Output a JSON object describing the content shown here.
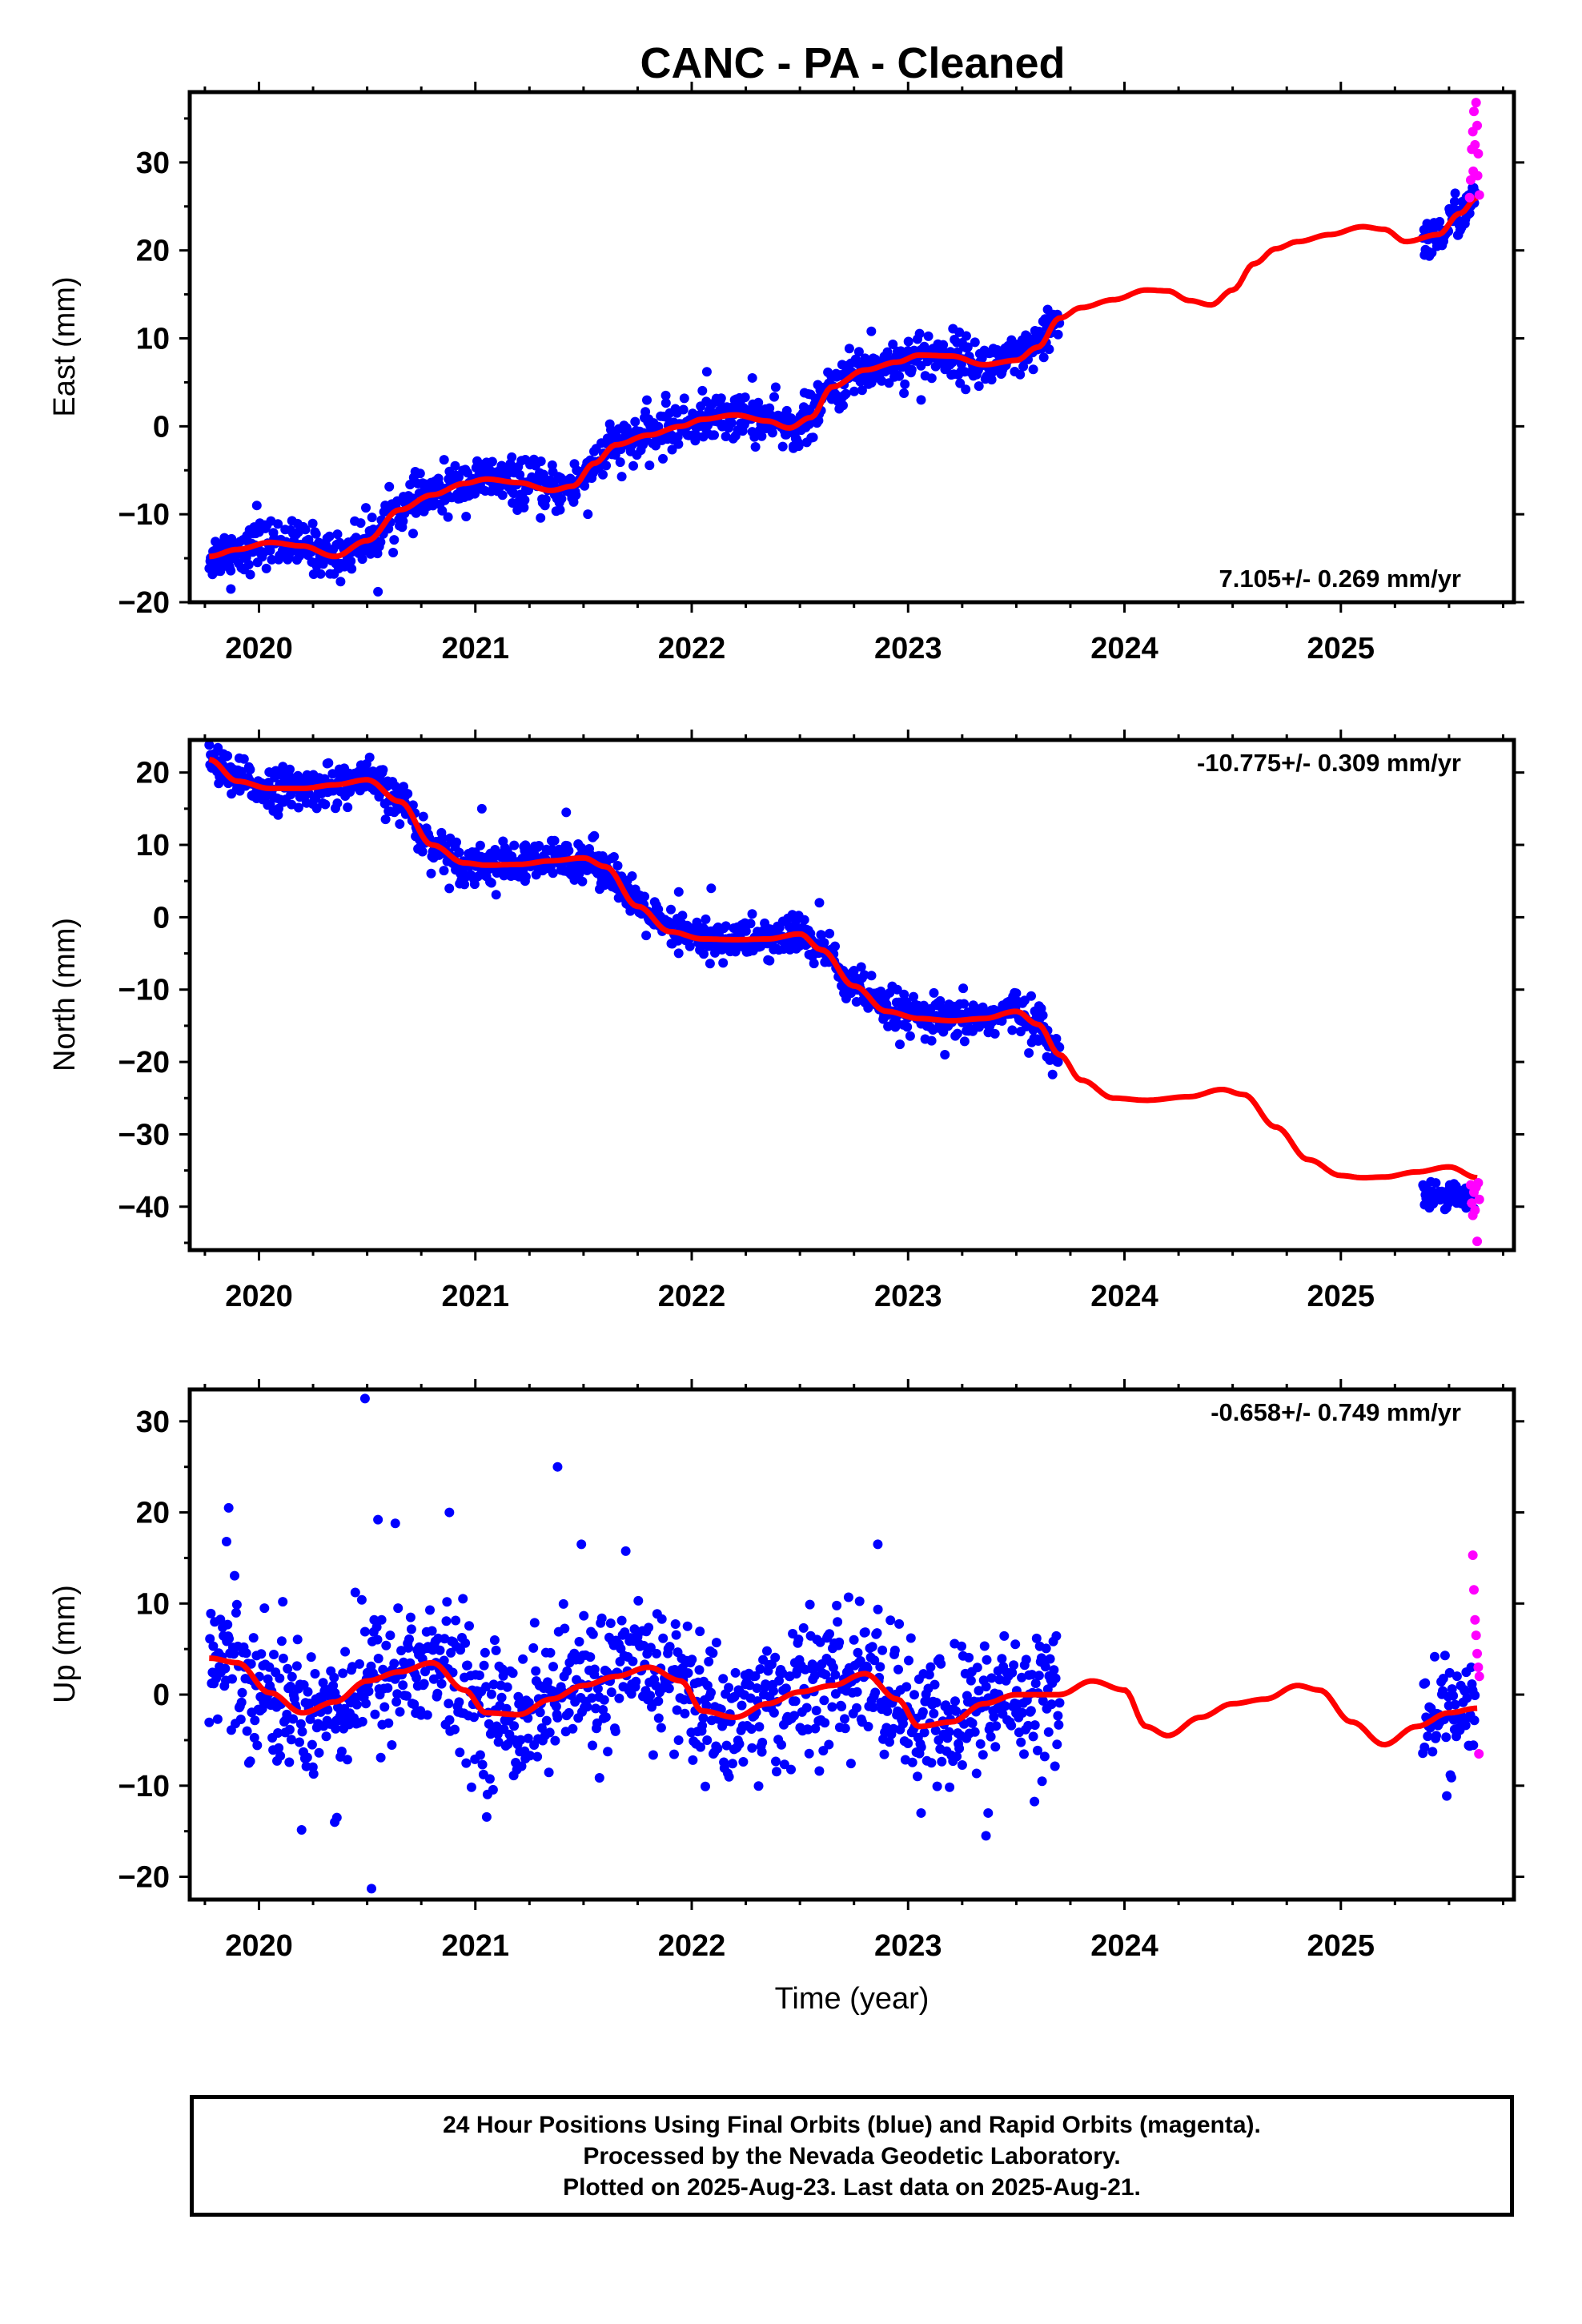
{
  "title": "CANC  - PA - Cleaned",
  "footer": {
    "line1": "24 Hour Positions Using Final Orbits (blue) and Rapid Orbits (magenta).",
    "line2": "Processed by the Nevada Geodetic Laboratory.",
    "line3": "Plotted on 2025-Aug-23. Last data on 2025-Aug-21."
  },
  "colors": {
    "final": "#0000ff",
    "rapid": "#ff00ff",
    "model": "#ff0000",
    "axes": "#000000"
  },
  "chart_data": [
    {
      "type": "scatter",
      "panel": "east",
      "ylabel": "East (mm)",
      "xlabel": "",
      "xlim": [
        2019.68,
        2025.8
      ],
      "ylim": [
        -20,
        38
      ],
      "xticks": [
        2020,
        2021,
        2022,
        2023,
        2024,
        2025
      ],
      "yticks": [
        -20,
        -10,
        0,
        10,
        20,
        30
      ],
      "grid": false,
      "rate": "7.105+/- 0.269 mm/yr",
      "rate_position": "bottom-right",
      "model": {
        "x": [
          2019.77,
          2019.9,
          2020.05,
          2020.2,
          2020.35,
          2020.5,
          2020.65,
          2020.8,
          2020.95,
          2021.05,
          2021.2,
          2021.35,
          2021.45,
          2021.55,
          2021.65,
          2021.8,
          2021.95,
          2022.05,
          2022.2,
          2022.35,
          2022.45,
          2022.55,
          2022.65,
          2022.8,
          2022.95,
          2023.05,
          2023.2,
          2023.35,
          2023.5,
          2023.6,
          2023.7,
          2023.8,
          2023.95,
          2024.1,
          2024.2,
          2024.3,
          2024.4,
          2024.5,
          2024.6,
          2024.7,
          2024.8,
          2024.95,
          2025.1,
          2025.2,
          2025.3,
          2025.45,
          2025.55,
          2025.63
        ],
        "y": [
          -14.8,
          -14.0,
          -13.2,
          -13.6,
          -14.8,
          -13.0,
          -9.5,
          -7.8,
          -6.5,
          -6.0,
          -6.4,
          -7.3,
          -6.8,
          -4.2,
          -2.1,
          -1.0,
          0.0,
          0.8,
          1.3,
          0.6,
          -0.2,
          1.0,
          4.5,
          6.4,
          7.3,
          8.1,
          8.0,
          7.0,
          7.5,
          9.0,
          12.3,
          13.5,
          14.4,
          15.5,
          15.4,
          14.3,
          13.8,
          15.5,
          18.5,
          20.2,
          21.0,
          21.8,
          22.7,
          22.4,
          21.0,
          21.8,
          24.2,
          26.0
        ]
      },
      "final_segments": [
        {
          "x": [
            2019.77,
            2019.9,
            2020.05,
            2020.2,
            2020.35,
            2020.5,
            2020.65,
            2020.8,
            2020.95,
            2021.05,
            2021.2,
            2021.35,
            2021.45,
            2021.55,
            2021.65,
            2021.8,
            2021.95,
            2022.05,
            2022.2,
            2022.35,
            2022.45,
            2022.55,
            2022.65,
            2022.8,
            2022.95,
            2023.05,
            2023.2,
            2023.35,
            2023.5,
            2023.6,
            2023.7
          ],
          "y": [
            -14.8,
            -14.0,
            -13.2,
            -13.6,
            -14.8,
            -13.0,
            -9.5,
            -7.8,
            -6.5,
            -6.0,
            -6.4,
            -7.3,
            -6.8,
            -4.2,
            -2.1,
            -1.0,
            0.0,
            0.8,
            1.3,
            0.6,
            -0.2,
            1.0,
            4.5,
            6.4,
            7.3,
            8.1,
            8.0,
            7.0,
            7.5,
            9.0,
            12.3
          ],
          "scatter": 1.3
        },
        {
          "x": [
            2025.38,
            2025.45,
            2025.55,
            2025.62
          ],
          "y": [
            21.0,
            21.8,
            24.2,
            25.5
          ],
          "scatter": 1.2
        }
      ],
      "outliers": {
        "x": [
          2019.87,
          2019.99,
          2020.47,
          2020.55,
          2021.52,
          2021.73,
          2021.88,
          2022.07,
          2022.28,
          2022.47,
          2022.83,
          2023.06,
          2023.25
        ],
        "y": [
          -18.5,
          -9.0,
          -11.0,
          -18.8,
          -10.0,
          -4.5,
          3.5,
          6.2,
          5.5,
          -2.5,
          10.8,
          3.0,
          9.5
        ]
      },
      "rapid": {
        "x": [
          2025.595,
          2025.6,
          2025.605,
          2025.61,
          2025.612,
          2025.615,
          2025.62,
          2025.625,
          2025.63,
          2025.632,
          2025.635,
          2025.64
        ],
        "y": [
          26.0,
          28.0,
          31.5,
          33.5,
          29.0,
          35.8,
          32.0,
          36.8,
          34.2,
          28.5,
          31.0,
          26.3
        ]
      }
    },
    {
      "type": "scatter",
      "panel": "north",
      "ylabel": "North (mm)",
      "xlabel": "",
      "xlim": [
        2019.68,
        2025.8
      ],
      "ylim": [
        -46,
        24.5
      ],
      "xticks": [
        2020,
        2021,
        2022,
        2023,
        2024,
        2025
      ],
      "yticks": [
        -40,
        -30,
        -20,
        -10,
        0,
        10,
        20
      ],
      "grid": false,
      "rate": "-10.775+/- 0.309 mm/yr",
      "rate_position": "top-right",
      "model": {
        "x": [
          2019.77,
          2019.9,
          2020.05,
          2020.2,
          2020.35,
          2020.5,
          2020.65,
          2020.8,
          2020.95,
          2021.05,
          2021.2,
          2021.35,
          2021.5,
          2021.6,
          2021.75,
          2021.9,
          2022.05,
          2022.2,
          2022.35,
          2022.5,
          2022.6,
          2022.75,
          2022.9,
          2023.05,
          2023.2,
          2023.35,
          2023.5,
          2023.6,
          2023.7,
          2023.8,
          2023.95,
          2024.1,
          2024.3,
          2024.45,
          2024.55,
          2024.7,
          2024.85,
          2025.0,
          2025.1,
          2025.2,
          2025.35,
          2025.5,
          2025.63
        ],
        "y": [
          21.8,
          18.8,
          17.8,
          17.8,
          18.3,
          19.0,
          16.0,
          10.0,
          7.5,
          7.2,
          7.3,
          7.8,
          8.2,
          7.0,
          1.5,
          -2.0,
          -3.0,
          -3.1,
          -3.0,
          -2.3,
          -4.5,
          -9.5,
          -13.0,
          -14.0,
          -14.3,
          -14.0,
          -13.0,
          -14.8,
          -19.0,
          -22.5,
          -25.0,
          -25.3,
          -24.8,
          -23.8,
          -24.5,
          -29.0,
          -33.5,
          -35.7,
          -36.0,
          -35.9,
          -35.2,
          -34.5,
          -36.0
        ]
      },
      "final_segments": [
        {
          "x": [
            2019.77,
            2019.9,
            2020.05,
            2020.2,
            2020.35,
            2020.5,
            2020.65,
            2020.8,
            2020.95,
            2021.05,
            2021.2,
            2021.35,
            2021.5,
            2021.6,
            2021.75,
            2021.9,
            2022.05,
            2022.2,
            2022.35,
            2022.5,
            2022.6,
            2022.75,
            2022.9,
            2023.05,
            2023.2,
            2023.35,
            2023.5,
            2023.6,
            2023.7
          ],
          "y": [
            21.8,
            18.8,
            17.8,
            17.8,
            18.3,
            19.0,
            16.0,
            10.0,
            7.5,
            7.2,
            7.3,
            7.8,
            8.2,
            7.0,
            1.5,
            -2.0,
            -3.0,
            -3.1,
            -3.0,
            -2.3,
            -4.5,
            -9.5,
            -13.0,
            -14.0,
            -14.3,
            -14.0,
            -13.0,
            -14.8,
            -19.5
          ],
          "scatter": 1.4
        },
        {
          "x": [
            2025.38,
            2025.5,
            2025.62
          ],
          "y": [
            -38.6,
            -38.0,
            -38.8
          ],
          "scatter": 0.9
        }
      ],
      "outliers": {
        "x": [
          2021.03,
          2021.23,
          2021.42,
          2021.94,
          2022.09,
          2022.36,
          2022.59,
          2022.95,
          2023.17,
          2023.5
        ],
        "y": [
          15.0,
          5.0,
          14.5,
          3.5,
          4.0,
          -6.0,
          2.0,
          -10.0,
          -19.0,
          -10.5
        ]
      },
      "rapid": {
        "x": [
          2025.6,
          2025.605,
          2025.61,
          2025.615,
          2025.62,
          2025.625,
          2025.63,
          2025.635,
          2025.64
        ],
        "y": [
          -37.0,
          -39.5,
          -41.2,
          -38.0,
          -40.5,
          -37.3,
          -44.8,
          -36.7,
          -39.0
        ]
      }
    },
    {
      "type": "scatter",
      "panel": "up",
      "ylabel": "Up (mm)",
      "xlabel": "Time (year)",
      "xlim": [
        2019.68,
        2025.8
      ],
      "ylim": [
        -22.5,
        33.5
      ],
      "xticks": [
        2020,
        2021,
        2022,
        2023,
        2024,
        2025
      ],
      "yticks": [
        -20,
        -10,
        0,
        10,
        20,
        30
      ],
      "grid": false,
      "rate": "-0.658+/- 0.749 mm/yr",
      "rate_position": "top-right",
      "model": {
        "x": [
          2019.77,
          2019.9,
          2020.05,
          2020.2,
          2020.35,
          2020.5,
          2020.65,
          2020.8,
          2020.95,
          2021.05,
          2021.2,
          2021.35,
          2021.5,
          2021.65,
          2021.8,
          2021.95,
          2022.05,
          2022.2,
          2022.35,
          2022.5,
          2022.65,
          2022.8,
          2022.95,
          2023.05,
          2023.2,
          2023.35,
          2023.5,
          2023.6,
          2023.7,
          2023.85,
          2024.0,
          2024.1,
          2024.2,
          2024.35,
          2024.5,
          2024.65,
          2024.8,
          2024.9,
          2025.05,
          2025.2,
          2025.35,
          2025.5,
          2025.63
        ],
        "y": [
          4.0,
          3.5,
          0.2,
          -2.0,
          -0.8,
          1.5,
          2.5,
          3.5,
          0.5,
          -2.0,
          -2.2,
          -0.5,
          1.0,
          2.0,
          3.0,
          1.5,
          -1.8,
          -2.5,
          -1.0,
          0.3,
          1.0,
          2.3,
          -0.5,
          -3.5,
          -3.0,
          -1.0,
          0.0,
          0.0,
          0.0,
          1.5,
          0.5,
          -3.5,
          -4.5,
          -2.5,
          -1.0,
          -0.5,
          1.0,
          0.5,
          -3.0,
          -5.5,
          -3.5,
          -2.0,
          -1.5
        ]
      },
      "final_segments": [
        {
          "x": [
            2019.77,
            2019.9,
            2020.05,
            2020.2,
            2020.35,
            2020.5,
            2020.65,
            2020.8,
            2020.95,
            2021.05,
            2021.2,
            2021.35,
            2021.5,
            2021.65,
            2021.8,
            2021.95,
            2022.05,
            2022.2,
            2022.35,
            2022.5,
            2022.65,
            2022.8,
            2022.95,
            2023.05,
            2023.2,
            2023.35,
            2023.5,
            2023.6,
            2023.7
          ],
          "y": [
            4.0,
            3.5,
            0.2,
            -2.0,
            -0.8,
            1.5,
            2.5,
            3.5,
            0.5,
            -2.0,
            -2.2,
            -0.5,
            1.0,
            2.0,
            3.0,
            1.5,
            -1.8,
            -2.5,
            -1.0,
            0.3,
            1.0,
            2.3,
            -0.5,
            -3.5,
            -3.0,
            -1.0,
            0.0,
            0.0,
            0.0
          ],
          "scatter": 3.8
        },
        {
          "x": [
            2025.38,
            2025.5,
            2025.62
          ],
          "y": [
            -3.0,
            -2.0,
            -1.5
          ],
          "scatter": 3.0
        }
      ],
      "outliers": {
        "x": [
          2019.86,
          2019.85,
          2020.36,
          2020.35,
          2020.49,
          2020.52,
          2020.55,
          2020.63,
          2020.88,
          2021.38,
          2021.49,
          2022.86,
          2023.06,
          2023.36,
          2023.37
        ],
        "y": [
          20.5,
          16.8,
          -13.5,
          -14.0,
          32.5,
          -21.3,
          19.2,
          18.8,
          20.0,
          25.0,
          16.5,
          16.5,
          -13.0,
          -15.5,
          -13.0
        ]
      },
      "rapid": {
        "x": [
          2025.61,
          2025.615,
          2025.62,
          2025.625,
          2025.63,
          2025.635,
          2025.64,
          2025.638
        ],
        "y": [
          15.3,
          11.5,
          8.2,
          6.5,
          4.5,
          3.0,
          2.0,
          -6.5
        ]
      }
    }
  ]
}
